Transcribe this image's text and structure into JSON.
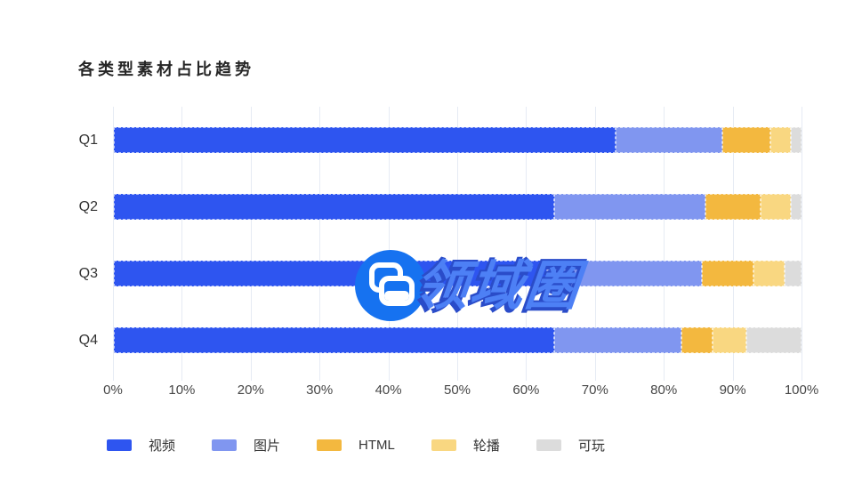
{
  "title": "各类型素材占比趋势",
  "chart_data": {
    "type": "bar",
    "orientation": "horizontal",
    "stacked": true,
    "title": "各类型素材占比趋势",
    "categories": [
      "Q1",
      "Q2",
      "Q3",
      "Q4"
    ],
    "series": [
      {
        "name": "视频",
        "color": "#2e55f0",
        "values": [
          73,
          64,
          63,
          64
        ]
      },
      {
        "name": "图片",
        "color": "#8096f0",
        "values": [
          15.5,
          22,
          22.5,
          18.5
        ]
      },
      {
        "name": "HTML",
        "color": "#f3b83f",
        "values": [
          7,
          8,
          7.5,
          4.5
        ]
      },
      {
        "name": "轮播",
        "color": "#f9d781",
        "values": [
          3,
          4.5,
          4.5,
          5
        ]
      },
      {
        "name": "可玩",
        "color": "#dcdcdc",
        "values": [
          1.5,
          1.5,
          2.5,
          8
        ]
      }
    ],
    "x_ticks": [
      "0%",
      "10%",
      "20%",
      "30%",
      "40%",
      "50%",
      "60%",
      "70%",
      "80%",
      "90%",
      "100%"
    ],
    "xlim": [
      0,
      100
    ],
    "grid": true,
    "legend_position": "bottom"
  },
  "watermark": {
    "text": "领域圈",
    "logo_color": "#1672f0"
  },
  "colors": {
    "gridline": "#e6ebf4",
    "axis_label": "#464646",
    "title_color": "#262626"
  }
}
